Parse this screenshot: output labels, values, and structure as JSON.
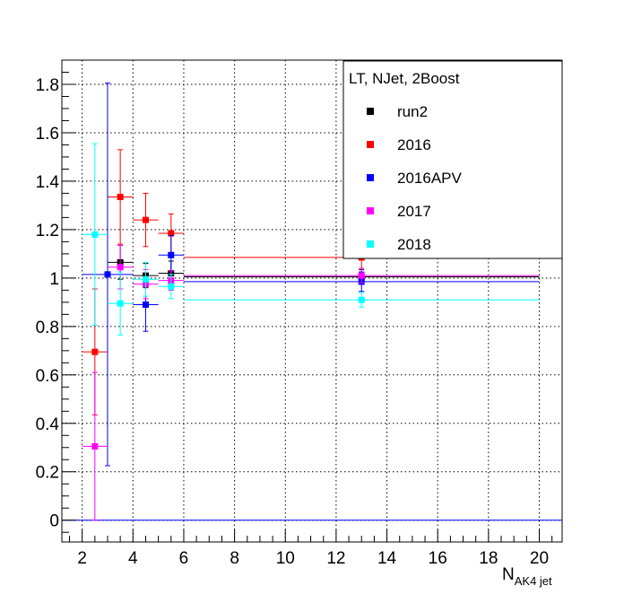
{
  "chart_data": {
    "type": "scatter",
    "title": "",
    "xlabel_main": "N",
    "xlabel_sub": "AK4 jet",
    "ylabel": "",
    "xlim": [
      1.2,
      20.9
    ],
    "ylim": [
      -0.09,
      1.9
    ],
    "grid": true,
    "legend_title": "LT, NJet, 2Boost",
    "legend_position": "top-right",
    "x_ticks": [
      2,
      4,
      6,
      8,
      10,
      12,
      14,
      16,
      18,
      20
    ],
    "y_ticks": [
      0,
      0.2,
      0.4,
      0.6,
      0.8,
      1,
      1.2,
      1.4,
      1.6,
      1.8
    ],
    "x_tick_labels": [
      "2",
      "4",
      "6",
      "8",
      "10",
      "12",
      "14",
      "16",
      "18",
      "20"
    ],
    "y_tick_labels": [
      "0",
      "0.2",
      "0.4",
      "0.6",
      "0.8",
      "1",
      "1.2",
      "1.4",
      "1.6",
      "1.8"
    ],
    "reference_line_y": 0,
    "series": [
      {
        "name": "run2",
        "color": "#000000",
        "points": [
          {
            "x": 3.5,
            "xerr": 0.5,
            "y": 1.065,
            "yerr": 0.07
          },
          {
            "x": 4.5,
            "xerr": 0.5,
            "y": 1.01,
            "yerr": 0.05
          },
          {
            "x": 5.5,
            "xerr": 0.5,
            "y": 1.02,
            "yerr": 0.05
          },
          {
            "x": 13.0,
            "xerr": 7.0,
            "y": 1.005,
            "yerr": 0.03
          }
        ]
      },
      {
        "name": "2016",
        "color": "#ff0000",
        "points": [
          {
            "x": 2.5,
            "xerr": 0.5,
            "y": 0.695,
            "yerr": 0.26
          },
          {
            "x": 3.5,
            "xerr": 0.5,
            "y": 1.335,
            "yerr": 0.195
          },
          {
            "x": 4.5,
            "xerr": 0.5,
            "y": 1.24,
            "yerr": 0.11
          },
          {
            "x": 5.5,
            "xerr": 0.5,
            "y": 1.185,
            "yerr": 0.08
          },
          {
            "x": 13.0,
            "xerr": 7.0,
            "y": 1.085,
            "yerr": 0.06
          }
        ]
      },
      {
        "name": "2016APV",
        "color": "#0000ff",
        "points": [
          {
            "x": 3.0,
            "xerr": 1.0,
            "y": 1.015,
            "yerr": 0.79
          },
          {
            "x": 4.5,
            "xerr": 0.5,
            "y": 0.89,
            "yerr": 0.11
          },
          {
            "x": 5.5,
            "xerr": 0.5,
            "y": 1.095,
            "yerr": 0.08
          },
          {
            "x": 13.0,
            "xerr": 7.0,
            "y": 0.985,
            "yerr": 0.04
          }
        ]
      },
      {
        "name": "2017",
        "color": "#ff00ff",
        "points": [
          {
            "x": 2.5,
            "xerr": 0.5,
            "y": 0.305,
            "yerr": 0.305
          },
          {
            "x": 3.5,
            "xerr": 0.5,
            "y": 1.045,
            "yerr": 0.09
          },
          {
            "x": 4.5,
            "xerr": 0.5,
            "y": 0.975,
            "yerr": 0.06
          },
          {
            "x": 5.5,
            "xerr": 0.5,
            "y": 0.99,
            "yerr": 0.04
          },
          {
            "x": 13.0,
            "xerr": 7.0,
            "y": 1.01,
            "yerr": 0.03
          }
        ]
      },
      {
        "name": "2018",
        "color": "#00ffff",
        "points": [
          {
            "x": 2.5,
            "xerr": 0.5,
            "y": 1.18,
            "yerr": 0.375
          },
          {
            "x": 3.5,
            "xerr": 0.5,
            "y": 0.895,
            "yerr": 0.13
          },
          {
            "x": 4.5,
            "xerr": 0.5,
            "y": 0.995,
            "yerr": 0.07
          },
          {
            "x": 5.5,
            "xerr": 0.5,
            "y": 0.965,
            "yerr": 0.05
          },
          {
            "x": 13.0,
            "xerr": 7.0,
            "y": 0.91,
            "yerr": 0.03
          }
        ]
      }
    ]
  }
}
